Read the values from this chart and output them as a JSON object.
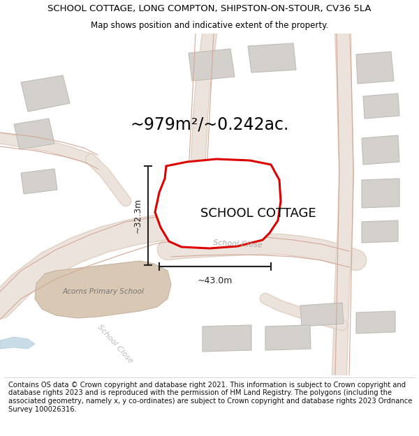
{
  "title": "SCHOOL COTTAGE, LONG COMPTON, SHIPSTON-ON-STOUR, CV36 5LA",
  "subtitle": "Map shows position and indicative extent of the property.",
  "footer": "Contains OS data © Crown copyright and database right 2021. This information is subject to Crown copyright and database rights 2023 and is reproduced with the permission of HM Land Registry. The polygons (including the associated geometry, namely x, y co-ordinates) are subject to Crown copyright and database rights 2023 Ordnance Survey 100026316.",
  "area_label": "~979m²/~0.242ac.",
  "width_label": "~43.0m",
  "height_label": "~32.3m",
  "property_label": "SCHOOL COTTAGE",
  "road_label1": "School Close",
  "road_label2": "School Close",
  "acorns_label": "Acorns Primary School",
  "bg_color": "#f8f6f4",
  "title_fontsize": 9.5,
  "subtitle_fontsize": 8.5,
  "footer_fontsize": 7.2,
  "property_stroke": "#dd0000",
  "dim_color": "#222222",
  "property_label_size": 13,
  "school_label_size": 7.5,
  "road_fill": "#e8d5c8",
  "building_gray": "#d4d0cc",
  "building_ec": "#c0bcb8",
  "school_fill": "#d8c8b4",
  "school_ec": "#c4b4a0",
  "road_line_color": "#d4b8a8"
}
